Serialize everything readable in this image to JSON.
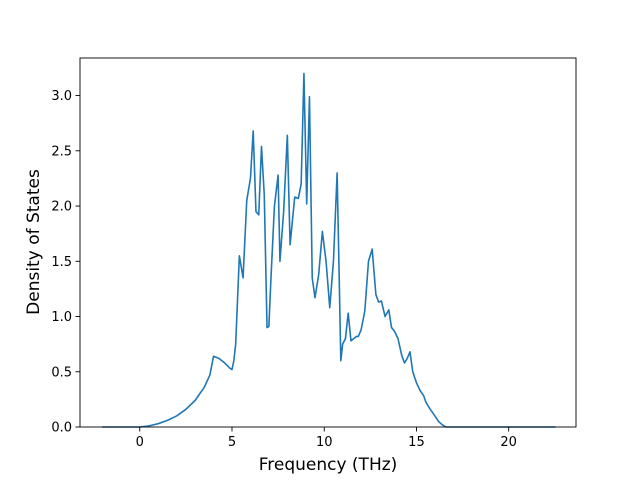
{
  "chart_data": {
    "type": "line",
    "title": "",
    "xlabel": "Frequency (THz)",
    "ylabel": "Density of States",
    "xlim": [
      -3.24,
      23.65
    ],
    "ylim": [
      0,
      3.34
    ],
    "xticks": [
      0,
      5,
      10,
      15,
      20
    ],
    "yticks": [
      0.0,
      0.5,
      1.0,
      1.5,
      2.0,
      2.5,
      3.0
    ],
    "xtick_labels": [
      "0",
      "5",
      "10",
      "15",
      "20"
    ],
    "ytick_labels": [
      "0.0",
      "0.5",
      "1.0",
      "1.5",
      "2.0",
      "2.5",
      "3.0"
    ],
    "grid": false,
    "legend": null,
    "series": [
      {
        "color": "#1f77b4",
        "x": [
          -2.0,
          -1.0,
          0.0,
          0.5,
          1.0,
          1.5,
          2.0,
          2.5,
          3.0,
          3.5,
          3.8,
          4.0,
          4.3,
          4.6,
          4.9,
          5.0,
          5.1,
          5.2,
          5.4,
          5.6,
          5.8,
          6.0,
          6.15,
          6.3,
          6.45,
          6.6,
          6.75,
          6.9,
          7.0,
          7.1,
          7.3,
          7.5,
          7.6,
          7.8,
          8.0,
          8.15,
          8.4,
          8.6,
          8.75,
          8.9,
          9.05,
          9.2,
          9.35,
          9.5,
          9.7,
          9.9,
          10.1,
          10.3,
          10.5,
          10.7,
          10.9,
          11.0,
          11.15,
          11.3,
          11.45,
          11.6,
          11.75,
          11.85,
          12.0,
          12.2,
          12.4,
          12.6,
          12.8,
          12.95,
          13.1,
          13.3,
          13.5,
          13.65,
          13.8,
          14.0,
          14.2,
          14.35,
          14.5,
          14.65,
          14.8,
          15.0,
          15.2,
          15.4,
          15.5,
          15.6,
          15.75,
          16.0,
          16.2,
          16.4,
          16.6,
          17.0,
          17.5,
          18.0,
          18.5,
          18.9,
          19.2,
          19.6,
          20.0,
          20.3,
          20.7,
          21.5,
          22.5
        ],
        "y": [
          0.0,
          0.0,
          0.0,
          0.01,
          0.03,
          0.06,
          0.1,
          0.16,
          0.24,
          0.36,
          0.47,
          0.64,
          0.62,
          0.58,
          0.53,
          0.52,
          0.6,
          0.75,
          1.55,
          1.35,
          2.05,
          2.25,
          2.68,
          1.95,
          1.92,
          2.54,
          2.1,
          0.9,
          0.91,
          1.3,
          2.0,
          2.28,
          1.5,
          1.95,
          2.64,
          1.65,
          2.08,
          2.07,
          2.2,
          3.2,
          2.02,
          2.99,
          1.35,
          1.17,
          1.38,
          1.77,
          1.5,
          1.08,
          1.5,
          2.3,
          0.6,
          0.75,
          0.8,
          1.03,
          0.78,
          0.8,
          0.82,
          0.82,
          0.88,
          1.05,
          1.5,
          1.61,
          1.2,
          1.13,
          1.14,
          1.0,
          1.06,
          0.9,
          0.87,
          0.8,
          0.65,
          0.58,
          0.62,
          0.68,
          0.5,
          0.4,
          0.33,
          0.28,
          0.23,
          0.2,
          0.16,
          0.1,
          0.05,
          0.02,
          0.0,
          0.0,
          0.0,
          0.0,
          0.0,
          0.0,
          0.0,
          0.0,
          0.0,
          0.0,
          0.0,
          0.0,
          0.0
        ]
      }
    ]
  }
}
